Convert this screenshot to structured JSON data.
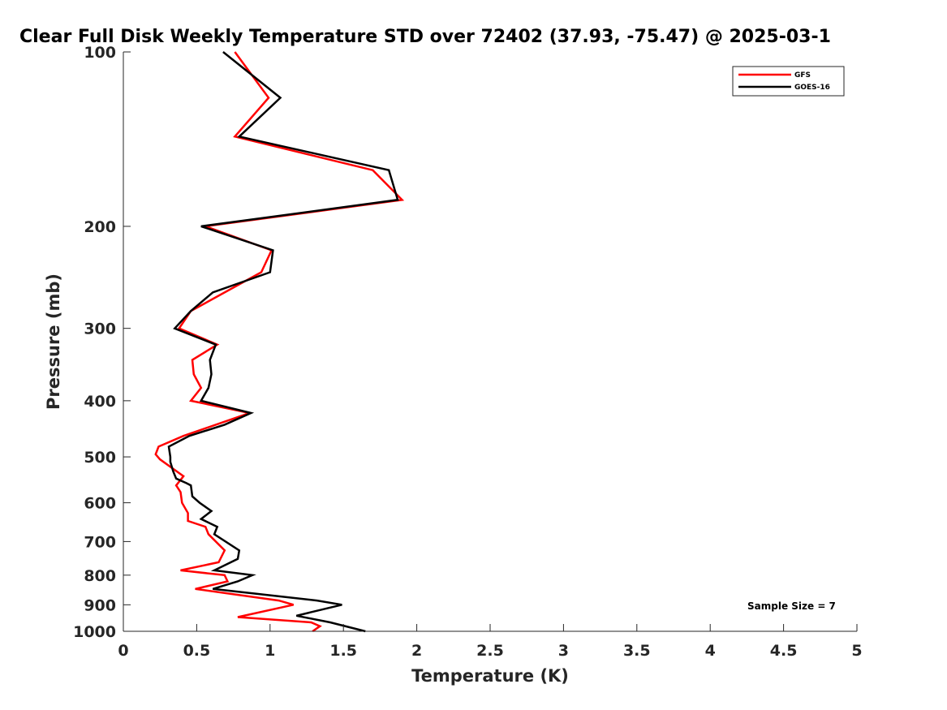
{
  "chart_data": {
    "type": "line",
    "title": "Clear Full Disk Weekly Temperature STD over 72402 (37.93, -75.47) @ 2025-03-1",
    "xlabel": "Temperature (K)",
    "ylabel": "Pressure (mb)",
    "xlim": [
      0,
      5
    ],
    "ylim": [
      100,
      1000
    ],
    "y_scale": "log",
    "y_reversed": true,
    "x_ticks": [
      "0",
      "0.5",
      "1",
      "1.5",
      "2",
      "2.5",
      "3",
      "3.5",
      "4",
      "4.5",
      "5"
    ],
    "x_tick_values": [
      0,
      0.5,
      1,
      1.5,
      2,
      2.5,
      3,
      3.5,
      4,
      4.5,
      5
    ],
    "y_ticks": [
      "100",
      "200",
      "300",
      "400",
      "500",
      "600",
      "700",
      "800",
      "900",
      "1000"
    ],
    "y_tick_values": [
      100,
      200,
      300,
      400,
      500,
      600,
      700,
      800,
      900,
      1000
    ],
    "grid": false,
    "legend_position": "top-right",
    "annotation": "Sample Size = 7",
    "series": [
      {
        "name": "GFS",
        "color": "#ff0000",
        "points": [
          [
            0.76,
            100
          ],
          [
            0.99,
            120
          ],
          [
            0.76,
            140
          ],
          [
            1.7,
            160
          ],
          [
            1.9,
            180
          ],
          [
            0.56,
            200
          ],
          [
            1.01,
            220
          ],
          [
            0.94,
            240
          ],
          [
            0.46,
            280
          ],
          [
            0.38,
            300
          ],
          [
            0.64,
            320
          ],
          [
            0.47,
            340
          ],
          [
            0.48,
            360
          ],
          [
            0.53,
            380
          ],
          [
            0.46,
            400
          ],
          [
            0.86,
            420
          ],
          [
            0.41,
            460
          ],
          [
            0.24,
            480
          ],
          [
            0.22,
            495
          ],
          [
            0.25,
            505
          ],
          [
            0.41,
            540
          ],
          [
            0.36,
            560
          ],
          [
            0.39,
            575
          ],
          [
            0.4,
            600
          ],
          [
            0.44,
            625
          ],
          [
            0.44,
            645
          ],
          [
            0.56,
            660
          ],
          [
            0.58,
            680
          ],
          [
            0.69,
            725
          ],
          [
            0.65,
            760
          ],
          [
            0.39,
            785
          ],
          [
            0.69,
            800
          ],
          [
            0.71,
            820
          ],
          [
            0.49,
            845
          ],
          [
            1.06,
            885
          ],
          [
            1.16,
            900
          ],
          [
            0.78,
            945
          ],
          [
            1.28,
            965
          ],
          [
            1.34,
            980
          ],
          [
            1.29,
            1000
          ]
        ]
      },
      {
        "name": "GOES-16",
        "color": "#000000",
        "points": [
          [
            0.68,
            100
          ],
          [
            1.07,
            120
          ],
          [
            0.79,
            140
          ],
          [
            1.81,
            160
          ],
          [
            1.87,
            180
          ],
          [
            0.53,
            200
          ],
          [
            1.02,
            220
          ],
          [
            1.0,
            240
          ],
          [
            0.61,
            260
          ],
          [
            0.46,
            280
          ],
          [
            0.35,
            300
          ],
          [
            0.63,
            320
          ],
          [
            0.59,
            340
          ],
          [
            0.6,
            360
          ],
          [
            0.58,
            380
          ],
          [
            0.53,
            400
          ],
          [
            0.87,
            420
          ],
          [
            0.69,
            440
          ],
          [
            0.45,
            460
          ],
          [
            0.31,
            480
          ],
          [
            0.32,
            500
          ],
          [
            0.32,
            510
          ],
          [
            0.34,
            530
          ],
          [
            0.36,
            545
          ],
          [
            0.43,
            555
          ],
          [
            0.46,
            560
          ],
          [
            0.47,
            585
          ],
          [
            0.52,
            600
          ],
          [
            0.6,
            620
          ],
          [
            0.53,
            640
          ],
          [
            0.64,
            660
          ],
          [
            0.62,
            680
          ],
          [
            0.79,
            725
          ],
          [
            0.78,
            750
          ],
          [
            0.62,
            785
          ],
          [
            0.88,
            800
          ],
          [
            0.78,
            820
          ],
          [
            0.61,
            845
          ],
          [
            1.32,
            885
          ],
          [
            1.49,
            900
          ],
          [
            1.18,
            940
          ],
          [
            1.41,
            965
          ],
          [
            1.65,
            1000
          ]
        ]
      }
    ]
  }
}
